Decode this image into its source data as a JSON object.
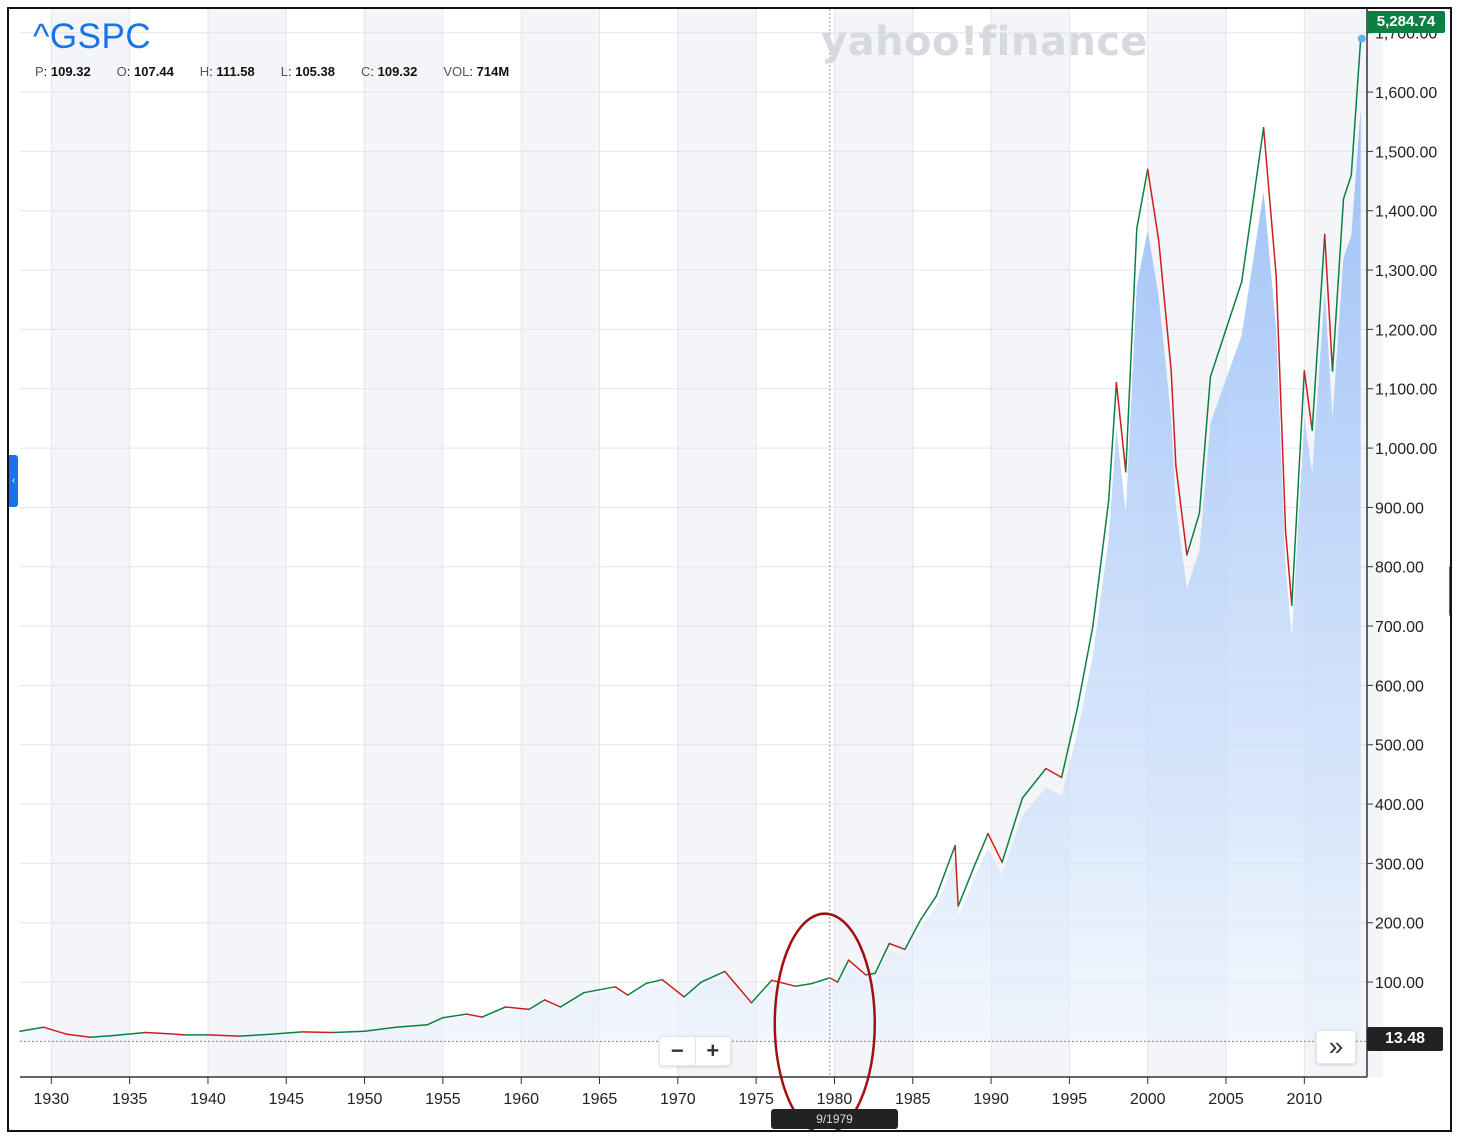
{
  "header": {
    "ticker": "^GSPC",
    "brand": "yahoo!finance",
    "ohlc": [
      {
        "key": "P",
        "value": "109.32"
      },
      {
        "key": "O",
        "value": "107.44"
      },
      {
        "key": "H",
        "value": "111.58"
      },
      {
        "key": "L",
        "value": "105.38"
      },
      {
        "key": "C",
        "value": "109.32"
      },
      {
        "key": "VOL",
        "value": "714M"
      }
    ]
  },
  "badges": {
    "last_price": "5,284.74",
    "base_price": "13.48",
    "cursor_date": "9/1979"
  },
  "controls": {
    "zoom_out": "−",
    "zoom_in": "+",
    "fast_forward": "»",
    "left_tab": "‹"
  },
  "colors": {
    "line_up": "#0b8043",
    "line_down": "#d01c1c",
    "area": "#a9c9f8",
    "annotation": "#a01010",
    "ticker": "#1a73e8"
  },
  "chart_data": {
    "type": "line",
    "series_mode": "line-with-area",
    "x_axis_ticks": [
      "1930",
      "1935",
      "1940",
      "1945",
      "1950",
      "1955",
      "1960",
      "1965",
      "1970",
      "1975",
      "1980",
      "1985",
      "1990",
      "1995",
      "2000",
      "2005",
      "2010"
    ],
    "y_axis_ticks": [
      "1,700.00",
      "1,600.00",
      "1,500.00",
      "1,400.00",
      "1,300.00",
      "1,200.00",
      "1,100.00",
      "1,000.00",
      "900.00",
      "800.00",
      "700.00",
      "600.00",
      "500.00",
      "400.00",
      "300.00",
      "200.00",
      "100.00"
    ],
    "xlim": [
      1928,
      2014
    ],
    "ylim": [
      -60,
      1740
    ],
    "grid": true,
    "series": [
      {
        "values": [
          [
            1928.0,
            17
          ],
          [
            1929.5,
            24
          ],
          [
            1931.0,
            12
          ],
          [
            1932.5,
            7
          ],
          [
            1934.0,
            10
          ],
          [
            1936.0,
            15
          ],
          [
            1937.5,
            13
          ],
          [
            1938.5,
            11
          ],
          [
            1940.0,
            11
          ],
          [
            1942.0,
            9
          ],
          [
            1944.0,
            12
          ],
          [
            1946.0,
            16
          ],
          [
            1948.0,
            15
          ],
          [
            1950.0,
            17
          ],
          [
            1952.0,
            24
          ],
          [
            1954.0,
            28
          ],
          [
            1955.0,
            40
          ],
          [
            1956.5,
            46
          ],
          [
            1957.5,
            41
          ],
          [
            1959.0,
            58
          ],
          [
            1960.5,
            54
          ],
          [
            1961.5,
            70
          ],
          [
            1962.5,
            58
          ],
          [
            1964.0,
            82
          ],
          [
            1966.0,
            92
          ],
          [
            1966.8,
            78
          ],
          [
            1968.0,
            98
          ],
          [
            1969.0,
            104
          ],
          [
            1970.4,
            75
          ],
          [
            1971.5,
            100
          ],
          [
            1973.0,
            118
          ],
          [
            1974.7,
            65
          ],
          [
            1976.0,
            103
          ],
          [
            1977.5,
            93
          ],
          [
            1978.5,
            97
          ],
          [
            1979.7,
            107
          ],
          [
            1980.2,
            100
          ],
          [
            1980.9,
            137
          ],
          [
            1982.0,
            112
          ],
          [
            1982.6,
            115
          ],
          [
            1983.5,
            165
          ],
          [
            1984.5,
            155
          ],
          [
            1985.5,
            205
          ],
          [
            1986.5,
            245
          ],
          [
            1987.7,
            330
          ],
          [
            1987.9,
            228
          ],
          [
            1989.0,
            300
          ],
          [
            1989.8,
            350
          ],
          [
            1990.7,
            302
          ],
          [
            1992.0,
            410
          ],
          [
            1993.5,
            460
          ],
          [
            1994.5,
            445
          ],
          [
            1995.5,
            560
          ],
          [
            1996.5,
            700
          ],
          [
            1997.5,
            910
          ],
          [
            1998.0,
            1110
          ],
          [
            1998.6,
            960
          ],
          [
            1999.3,
            1370
          ],
          [
            2000.0,
            1470
          ],
          [
            2000.7,
            1350
          ],
          [
            2001.5,
            1130
          ],
          [
            2001.8,
            970
          ],
          [
            2002.5,
            820
          ],
          [
            2003.3,
            890
          ],
          [
            2004.0,
            1120
          ],
          [
            2005.0,
            1200
          ],
          [
            2006.0,
            1280
          ],
          [
            2007.4,
            1540
          ],
          [
            2008.2,
            1290
          ],
          [
            2008.8,
            860
          ],
          [
            2009.2,
            735
          ],
          [
            2010.0,
            1130
          ],
          [
            2010.5,
            1030
          ],
          [
            2011.3,
            1360
          ],
          [
            2011.8,
            1130
          ],
          [
            2012.5,
            1420
          ],
          [
            2013.0,
            1460
          ],
          [
            2013.6,
            1690
          ]
        ]
      }
    ],
    "annotation": {
      "shape": "ellipse",
      "around_x": 1979.7
    }
  }
}
